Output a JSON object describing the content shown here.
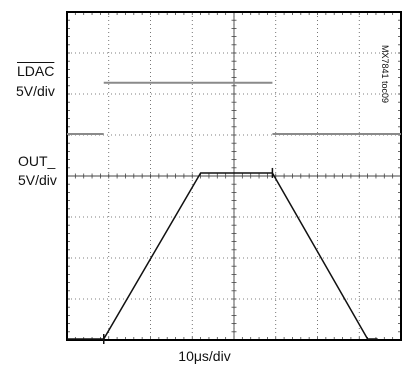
{
  "chart_data": {
    "type": "line",
    "title": "",
    "xlabel": "10μs/div",
    "x_divisions": 8,
    "y_divisions": 8,
    "xlim": [
      0,
      80
    ],
    "xunit": "μs",
    "grid": true,
    "channels": [
      {
        "name": "LDAC",
        "scale_label": "5V/div",
        "overline": true,
        "x": [
          0,
          8.8,
          8.8,
          49.2,
          49.2,
          80
        ],
        "y_div": [
          5.0,
          5.0,
          6.25,
          6.25,
          5.0,
          5.0
        ]
      },
      {
        "name": "OUT_",
        "scale_label": "5V/div",
        "x": [
          8.8,
          32,
          49.2,
          72,
          74.4
        ],
        "y_div": [
          0.0,
          4.05,
          4.05,
          0.0,
          0.0
        ]
      }
    ],
    "annotations": [
      "MX7841 toc09"
    ]
  }
}
